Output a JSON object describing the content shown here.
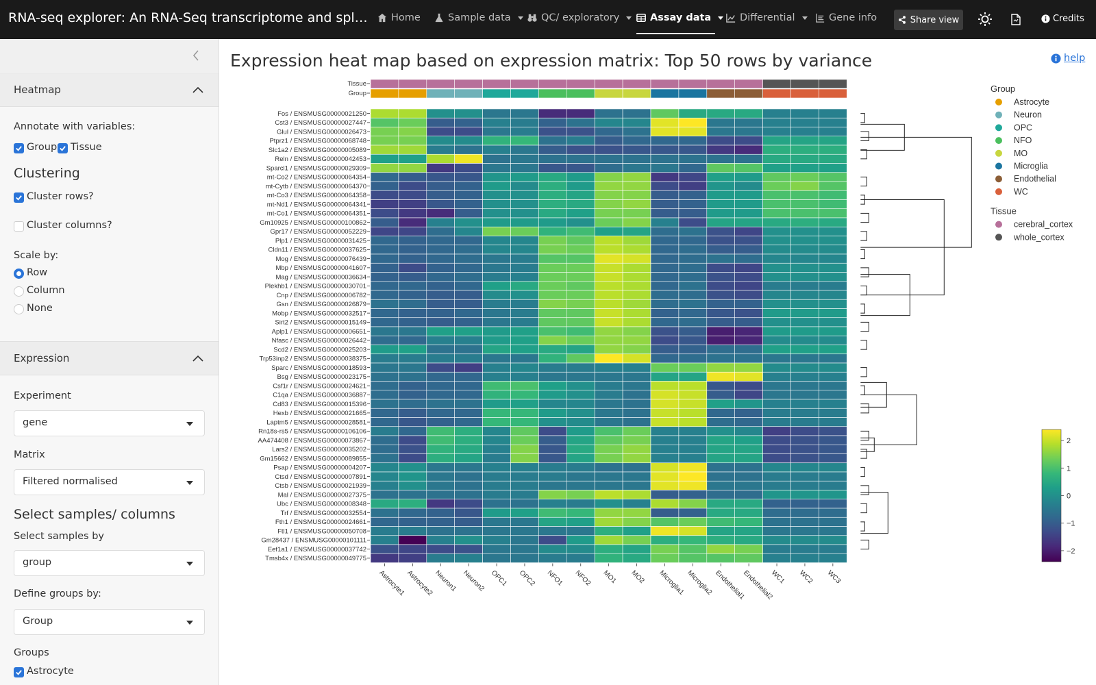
{
  "nav": {
    "title": "RNA-seq explorer: An RNA-Seq transcriptome and splicing database of glia, neurons, and vascular cells of the cerebral cortex",
    "items": [
      {
        "label": "Home",
        "icon": "home-icon",
        "caret": false,
        "active": false
      },
      {
        "label": "Sample data",
        "icon": "flask-icon",
        "caret": true,
        "active": false
      },
      {
        "label": "QC/ exploratory",
        "icon": "binoculars-icon",
        "caret": true,
        "active": false
      },
      {
        "label": "Assay data",
        "icon": "table-icon",
        "caret": true,
        "active": true
      },
      {
        "label": "Differential",
        "icon": "chart-line-icon",
        "caret": true,
        "active": false
      },
      {
        "label": "Gene info",
        "icon": "list-icon",
        "caret": false,
        "active": false
      }
    ],
    "share_label": "Share view",
    "credits_label": "Credits"
  },
  "sidebar": {
    "heatmap_header": "Heatmap",
    "annotate_label": "Annotate with variables:",
    "annotate_options": [
      "Group",
      "Tissue"
    ],
    "clustering_title": "Clustering",
    "cluster_rows": "Cluster rows?",
    "cluster_cols": "Cluster columns?",
    "scale_label": "Scale by:",
    "scale_options": [
      "Row",
      "Column",
      "None"
    ],
    "expression_header": "Expression",
    "experiment_label": "Experiment",
    "experiment_value": "gene",
    "matrix_label": "Matrix",
    "matrix_value": "Filtered normalised",
    "select_title": "Select samples/ columns",
    "select_by_label": "Select samples by",
    "select_by_value": "group",
    "define_groups_label": "Define groups by:",
    "define_groups_value": "Group",
    "groups_label": "Groups",
    "groups_first": "Astrocyte"
  },
  "main": {
    "title": "Expression heat map based on expression matrix: Top 50 rows by variance",
    "help": "help"
  },
  "chart_data": {
    "type": "heatmap",
    "title": "Expression heat map based on expression matrix: Top 50 rows by variance",
    "colorscale": "viridis",
    "zlim": [
      -2.4,
      2.4
    ],
    "colorbar_ticks": [
      2,
      1,
      0,
      -1,
      -2
    ],
    "annotation_tracks": [
      "Tissue",
      "Group"
    ],
    "columns": [
      "Astrocyte1",
      "Astrocyte2",
      "Neuron1",
      "Neuron2",
      "OPC1",
      "OPC2",
      "NFO1",
      "NFO2",
      "MO1",
      "MO2",
      "Microglia1",
      "Microglia2",
      "Endothelial1",
      "Endothelial2",
      "WC1",
      "WC2",
      "WC3"
    ],
    "column_group": [
      "Astrocyte",
      "Astrocyte",
      "Neuron",
      "Neuron",
      "OPC",
      "OPC",
      "NFO",
      "NFO",
      "MO",
      "MO",
      "Microglia",
      "Microglia",
      "Endothelial",
      "Endothelial",
      "WC",
      "WC",
      "WC"
    ],
    "column_tissue": [
      "cerebral_cortex",
      "cerebral_cortex",
      "cerebral_cortex",
      "cerebral_cortex",
      "cerebral_cortex",
      "cerebral_cortex",
      "cerebral_cortex",
      "cerebral_cortex",
      "cerebral_cortex",
      "cerebral_cortex",
      "cerebral_cortex",
      "cerebral_cortex",
      "cerebral_cortex",
      "cerebral_cortex",
      "whole_cortex",
      "whole_cortex",
      "whole_cortex"
    ],
    "legend": {
      "Group": [
        {
          "name": "Astrocyte",
          "color": "#e69f00"
        },
        {
          "name": "Neuron",
          "color": "#6fb1b8"
        },
        {
          "name": "OPC",
          "color": "#1fa89a"
        },
        {
          "name": "NFO",
          "color": "#4bbf5e"
        },
        {
          "name": "MO",
          "color": "#c8d63f"
        },
        {
          "name": "Microglia",
          "color": "#1b75a0"
        },
        {
          "name": "Endothelial",
          "color": "#8c5e37"
        },
        {
          "name": "WC",
          "color": "#d9603b"
        }
      ],
      "Tissue": [
        {
          "name": "cerebral_cortex",
          "color": "#b7709a"
        },
        {
          "name": "whole_cortex",
          "color": "#555555"
        }
      ]
    },
    "rows": [
      "Fos / ENSMUSG00000021250",
      "Cst3 / ENSMUSG00000027447",
      "Glul / ENSMUSG00000026473",
      "Ptprz1 / ENSMUSG00000068748",
      "Slc1a2 / ENSMUSG00000005089",
      "Reln / ENSMUSG00000042453",
      "Sparcl1 / ENSMUSG00000029309",
      "mt-Co2 / ENSMUSG00000064354",
      "mt-Cytb / ENSMUSG00000064370",
      "mt-Co3 / ENSMUSG00000064358",
      "mt-Nd1 / ENSMUSG00000064341",
      "mt-Co1 / ENSMUSG00000064351",
      "Gm10925 / ENSMUSG00000100862",
      "Gpr17 / ENSMUSG00000052229",
      "Plp1 / ENSMUSG00000031425",
      "Cldn11 / ENSMUSG00000037625",
      "Mog / ENSMUSG00000076439",
      "Mbp / ENSMUSG00000041607",
      "Mag / ENSMUSG00000036634",
      "Plekhb1 / ENSMUSG00000030701",
      "Cnp / ENSMUSG00000006782",
      "Gsn / ENSMUSG00000026879",
      "Mobp / ENSMUSG00000032517",
      "Sirt2 / ENSMUSG00000015149",
      "Aplp1 / ENSMUSG00000006651",
      "Nfasc / ENSMUSG00000026442",
      "Scd2 / ENSMUSG00000025203",
      "Trp53inp2 / ENSMUSG00000038375",
      "Sparc / ENSMUSG00000018593",
      "Bsg / ENSMUSG00000023175",
      "Csf1r / ENSMUSG00000024621",
      "C1qa / ENSMUSG00000036887",
      "Cd83 / ENSMUSG00000015396",
      "Hexb / ENSMUSG00000021665",
      "Laptm5 / ENSMUSG00000028581",
      "Rn18s-rs5 / ENSMUSG00000106106",
      "AA474408 / ENSMUSG00000073867",
      "Lars2 / ENSMUSG00000035202",
      "Gm15662 / ENSMUSG00000089855",
      "Psap / ENSMUSG00000004207",
      "Ctsd / ENSMUSG00000007891",
      "Ctsb / ENSMUSG00000021939",
      "Mal / ENSMUSG00000027375",
      "Ubc / ENSMUSG00000008348",
      "Trf / ENSMUSG00000032554",
      "Fth1 / ENSMUSG00000024661",
      "Ftl1 / ENSMUSG00000050708",
      "Gm28437 / ENSMUSG00000101111",
      "Eef1a1 / ENSMUSG00000037742",
      "Tmsb4x / ENSMUSG00000049775"
    ],
    "values": [
      [
        1.8,
        1.8,
        0.0,
        0.0,
        -0.5,
        -0.5,
        -1.8,
        -1.8,
        -0.6,
        -0.6,
        1.2,
        0.5,
        0.5,
        0.5,
        -0.3,
        -0.3,
        -0.3
      ],
      [
        1.1,
        1.3,
        -1.0,
        -0.9,
        -0.3,
        -0.4,
        -0.9,
        -0.6,
        -0.2,
        -0.2,
        2.2,
        2.4,
        -0.5,
        -0.5,
        -0.3,
        -0.3,
        -0.3
      ],
      [
        1.4,
        1.5,
        -1.3,
        -1.3,
        -0.5,
        -0.4,
        -1.2,
        -1.2,
        -0.8,
        -0.6,
        2.2,
        2.2,
        -0.5,
        -0.5,
        -0.3,
        -0.3,
        -0.3
      ],
      [
        1.4,
        1.4,
        -0.1,
        -0.1,
        0.7,
        0.8,
        -0.6,
        -0.4,
        -1.0,
        -0.8,
        -0.8,
        -0.8,
        -1.3,
        -1.3,
        0.4,
        0.4,
        0.4
      ],
      [
        1.7,
        1.7,
        -0.4,
        -0.6,
        -0.3,
        -0.5,
        -1.0,
        -1.2,
        -1.2,
        -1.1,
        -1.1,
        -1.1,
        -1.6,
        -1.8,
        0.6,
        0.6,
        0.6
      ],
      [
        0.3,
        0.3,
        1.8,
        2.3,
        -0.6,
        -0.5,
        -0.6,
        -0.6,
        -0.6,
        -0.6,
        -0.6,
        -0.6,
        -0.6,
        -0.6,
        0.5,
        0.5,
        0.5
      ],
      [
        1.6,
        1.6,
        -1.6,
        -1.3,
        -0.5,
        -0.5,
        -1.1,
        -1.1,
        -0.7,
        -0.5,
        -0.5,
        -0.8,
        1.2,
        1.1,
        0.3,
        0.3,
        0.3
      ],
      [
        -0.8,
        -1.0,
        -1.1,
        -1.1,
        0.1,
        0.2,
        0.5,
        0.2,
        1.5,
        1.6,
        -1.6,
        -1.4,
        0.3,
        0.2,
        1.2,
        1.3,
        1.1
      ],
      [
        -0.9,
        -1.3,
        -1.0,
        -0.9,
        0.2,
        -0.1,
        0.6,
        0.2,
        1.6,
        1.6,
        -1.3,
        -1.5,
        0.1,
        -0.1,
        1.3,
        1.5,
        1.1
      ],
      [
        -1.3,
        -1.3,
        -1.0,
        -0.9,
        0.0,
        0.0,
        0.6,
        0.4,
        1.5,
        1.5,
        -1.0,
        -0.9,
        0.2,
        0.2,
        1.0,
        1.0,
        0.9
      ],
      [
        -1.5,
        -1.5,
        -1.1,
        -0.9,
        0.0,
        0.0,
        0.6,
        0.5,
        1.5,
        1.6,
        -1.0,
        -0.9,
        0.2,
        0.2,
        1.0,
        1.0,
        0.9
      ],
      [
        -1.3,
        -1.6,
        -1.8,
        -1.0,
        0.0,
        0.0,
        0.5,
        0.3,
        1.4,
        1.4,
        -1.0,
        -1.0,
        0.2,
        0.2,
        1.0,
        1.0,
        1.0
      ],
      [
        -1.0,
        -1.8,
        -0.3,
        0.0,
        0.2,
        0.2,
        0.2,
        0.0,
        1.3,
        1.5,
        -0.3,
        -1.3,
        0.4,
        0.4,
        0.5,
        0.6,
        0.5
      ],
      [
        -1.4,
        -1.4,
        -0.7,
        -0.2,
        1.4,
        1.3,
        0.7,
        0.9,
        0.3,
        0.4,
        -0.7,
        -0.6,
        -1.2,
        -1.4,
        0.0,
        0.0,
        0.0
      ],
      [
        -0.8,
        -0.9,
        -0.8,
        -0.8,
        -0.2,
        -0.2,
        1.4,
        1.2,
        1.9,
        1.7,
        -0.8,
        -0.8,
        -1.2,
        -1.2,
        0.0,
        0.0,
        0.0
      ],
      [
        -0.8,
        -0.9,
        -0.8,
        -0.7,
        -0.2,
        -0.2,
        1.4,
        1.3,
        1.9,
        1.8,
        -0.8,
        -0.7,
        -1.0,
        -1.0,
        -0.1,
        -0.1,
        -0.1
      ],
      [
        -0.8,
        -0.9,
        -0.8,
        -0.7,
        -0.5,
        -0.4,
        1.1,
        1.1,
        2.2,
        2.1,
        -0.8,
        -0.7,
        -0.6,
        -0.7,
        -0.2,
        -0.2,
        -0.2
      ],
      [
        -0.9,
        -1.3,
        -0.9,
        -0.8,
        -0.5,
        -0.4,
        1.3,
        1.3,
        2.0,
        1.8,
        -0.8,
        -0.7,
        -1.3,
        -1.4,
        0.0,
        0.0,
        0.0
      ],
      [
        -0.9,
        -1.0,
        -0.8,
        -0.7,
        -0.4,
        -0.3,
        1.3,
        1.3,
        2.0,
        1.8,
        -0.8,
        -0.7,
        -1.2,
        -1.3,
        0.0,
        0.0,
        0.0
      ],
      [
        -0.8,
        -0.8,
        -0.9,
        -0.8,
        0.3,
        0.5,
        1.3,
        1.2,
        1.9,
        1.8,
        -0.8,
        -0.6,
        -1.3,
        -1.4,
        -0.4,
        -0.4,
        -0.4
      ],
      [
        -0.8,
        -0.9,
        -1.0,
        -1.0,
        -0.1,
        0.0,
        1.3,
        1.3,
        1.9,
        1.8,
        -0.7,
        -0.7,
        -1.2,
        -1.3,
        -0.2,
        -0.2,
        -0.2
      ],
      [
        -0.6,
        -0.7,
        -1.0,
        -1.0,
        -0.4,
        -0.4,
        1.5,
        1.4,
        1.9,
        1.7,
        -0.7,
        -0.6,
        -0.9,
        -0.9,
        0.0,
        0.0,
        0.0
      ],
      [
        -0.8,
        -0.9,
        -0.9,
        -0.8,
        -0.5,
        -0.4,
        1.2,
        1.2,
        2.0,
        1.8,
        -0.9,
        -0.8,
        -1.1,
        -1.2,
        0.2,
        0.2,
        0.2
      ],
      [
        -0.8,
        -0.9,
        -1.0,
        -0.9,
        -0.5,
        -0.4,
        1.2,
        1.2,
        2.0,
        1.8,
        -0.8,
        -0.7,
        -1.0,
        -1.0,
        0.0,
        0.0,
        0.0
      ],
      [
        -0.5,
        -0.5,
        0.3,
        0.3,
        0.2,
        0.3,
        1.0,
        0.9,
        1.6,
        1.5,
        -1.2,
        -1.0,
        -2.0,
        -1.9,
        0.2,
        0.2,
        0.2
      ],
      [
        -0.7,
        -0.8,
        -0.3,
        -0.3,
        0.2,
        0.3,
        1.5,
        1.3,
        1.6,
        1.6,
        -1.3,
        -1.1,
        -2.0,
        -1.9,
        -0.1,
        -0.1,
        -0.1
      ],
      [
        0.2,
        0.3,
        -0.6,
        -0.6,
        0.4,
        0.3,
        0.5,
        0.4,
        1.6,
        1.5,
        -1.0,
        -0.9,
        -0.7,
        -0.7,
        0.3,
        0.3,
        0.3
      ],
      [
        -0.4,
        -0.4,
        -0.4,
        -0.4,
        -0.5,
        -0.5,
        0.7,
        1.2,
        2.4,
        2.1,
        -0.8,
        -0.7,
        -0.6,
        -0.6,
        -0.5,
        -0.5,
        -0.5
      ],
      [
        -0.5,
        -0.5,
        -1.3,
        -1.5,
        -0.3,
        -0.2,
        -0.4,
        -0.4,
        -0.3,
        -0.3,
        1.3,
        1.3,
        1.6,
        1.6,
        -0.1,
        -0.1,
        -0.1
      ],
      [
        -0.6,
        -0.6,
        -0.8,
        -0.8,
        -0.3,
        -0.3,
        -0.5,
        -0.5,
        -0.5,
        -0.5,
        0.4,
        0.4,
        2.3,
        2.2,
        -0.3,
        -0.3,
        -0.3
      ],
      [
        -0.7,
        -0.9,
        -0.8,
        -0.8,
        0.9,
        1.0,
        0.3,
        0.0,
        -0.4,
        -0.5,
        1.9,
        1.9,
        -1.1,
        -1.3,
        -0.5,
        -0.5,
        -0.5
      ],
      [
        -0.7,
        -0.9,
        -0.8,
        -0.8,
        0.7,
        0.8,
        0.2,
        0.0,
        -0.4,
        -0.6,
        2.1,
        2.0,
        -1.0,
        -1.4,
        -0.5,
        -0.5,
        -0.5
      ],
      [
        -0.6,
        -0.7,
        -0.6,
        -0.6,
        0.2,
        0.3,
        -0.2,
        -0.2,
        -0.5,
        -0.6,
        2.1,
        2.0,
        0.3,
        0.1,
        -0.3,
        -0.3,
        -0.3
      ],
      [
        -0.8,
        -1.0,
        -0.8,
        -0.8,
        0.8,
        0.8,
        0.2,
        0.0,
        -0.5,
        -0.6,
        2.0,
        1.9,
        -0.8,
        -0.9,
        -0.4,
        -0.4,
        -0.4
      ],
      [
        -0.8,
        -1.1,
        -0.9,
        -0.8,
        0.8,
        0.8,
        0.0,
        -0.1,
        -0.5,
        -0.6,
        2.0,
        1.9,
        -0.7,
        -0.8,
        -0.4,
        -0.4,
        -0.4
      ],
      [
        -0.4,
        -0.8,
        0.9,
        0.6,
        -0.2,
        1.2,
        -1.3,
        0.2,
        1.0,
        1.3,
        -0.3,
        -0.3,
        0.0,
        -0.2,
        -1.5,
        -1.3,
        -1.2
      ],
      [
        -0.7,
        -1.3,
        0.9,
        0.6,
        -0.2,
        1.3,
        -1.0,
        0.4,
        1.2,
        1.4,
        -0.3,
        -0.3,
        0.4,
        0.3,
        -1.3,
        -1.2,
        -1.1
      ],
      [
        -0.7,
        -1.2,
        0.7,
        0.5,
        -0.3,
        1.5,
        -1.1,
        0.5,
        1.4,
        1.6,
        -0.3,
        -0.3,
        0.4,
        0.4,
        -1.3,
        -1.2,
        -1.1
      ],
      [
        -0.6,
        -1.3,
        0.6,
        0.4,
        -0.4,
        1.5,
        -1.1,
        0.4,
        1.4,
        1.6,
        -0.3,
        -0.3,
        0.4,
        0.4,
        -1.3,
        -1.2,
        -1.1
      ],
      [
        -0.2,
        0.0,
        -0.5,
        -0.5,
        -0.3,
        -0.3,
        -0.4,
        -0.4,
        -0.6,
        -0.6,
        2.1,
        2.3,
        -0.6,
        -0.6,
        -0.2,
        -0.2,
        -0.2
      ],
      [
        -0.2,
        0.1,
        -0.5,
        -0.6,
        -0.4,
        -0.4,
        -0.4,
        -0.5,
        -0.5,
        -0.5,
        2.2,
        2.4,
        -0.6,
        -0.6,
        -0.4,
        -0.4,
        -0.4
      ],
      [
        -0.3,
        0.0,
        -0.5,
        -0.6,
        -0.4,
        -0.4,
        -0.5,
        -0.5,
        -0.5,
        -0.5,
        2.2,
        2.3,
        -0.5,
        -0.5,
        -0.4,
        -0.4,
        -0.4
      ],
      [
        -0.6,
        -0.6,
        -0.6,
        -0.6,
        -0.4,
        -0.4,
        1.5,
        1.4,
        1.9,
        1.8,
        -1.0,
        -0.9,
        -0.7,
        -0.7,
        0.1,
        0.1,
        0.1
      ],
      [
        0.5,
        0.6,
        -1.6,
        -1.3,
        -0.6,
        -0.6,
        -0.3,
        -0.4,
        0.0,
        -0.3,
        1.8,
        1.5,
        0.5,
        0.5,
        -0.9,
        -0.9,
        -0.9
      ],
      [
        -0.6,
        -0.8,
        -0.9,
        -1.1,
        0.2,
        0.3,
        0.9,
        0.8,
        1.6,
        1.6,
        -1.0,
        -0.9,
        0.5,
        0.5,
        -0.7,
        -0.7,
        -0.7
      ],
      [
        -0.8,
        -0.9,
        -0.9,
        -1.0,
        -0.5,
        -0.5,
        0.4,
        0.3,
        1.7,
        1.5,
        1.1,
        1.3,
        0.9,
        0.8,
        -0.6,
        -0.6,
        -0.6
      ],
      [
        -0.4,
        -0.4,
        -0.6,
        -0.6,
        -0.5,
        -0.5,
        -0.5,
        -0.5,
        0.6,
        0.3,
        2.3,
        2.1,
        0.4,
        0.4,
        -0.5,
        -0.5,
        -0.5
      ],
      [
        -0.3,
        -2.4,
        -0.3,
        0.0,
        -0.3,
        -0.5,
        -1.3,
        0.2,
        1.7,
        1.4,
        0.6,
        0.8,
        0.6,
        0.5,
        -0.1,
        -0.1,
        -0.1
      ],
      [
        -1.2,
        -1.4,
        -1.3,
        -1.2,
        -0.5,
        -0.5,
        -0.1,
        -0.1,
        0.6,
        0.4,
        1.4,
        1.1,
        1.6,
        1.4,
        -0.4,
        -0.4,
        -0.4
      ],
      [
        -1.6,
        -1.5,
        -0.4,
        -0.3,
        -0.5,
        -0.5,
        -0.4,
        -0.4,
        0.7,
        0.5,
        1.3,
        1.1,
        1.1,
        1.2,
        -0.3,
        -0.3,
        -0.3
      ]
    ]
  }
}
